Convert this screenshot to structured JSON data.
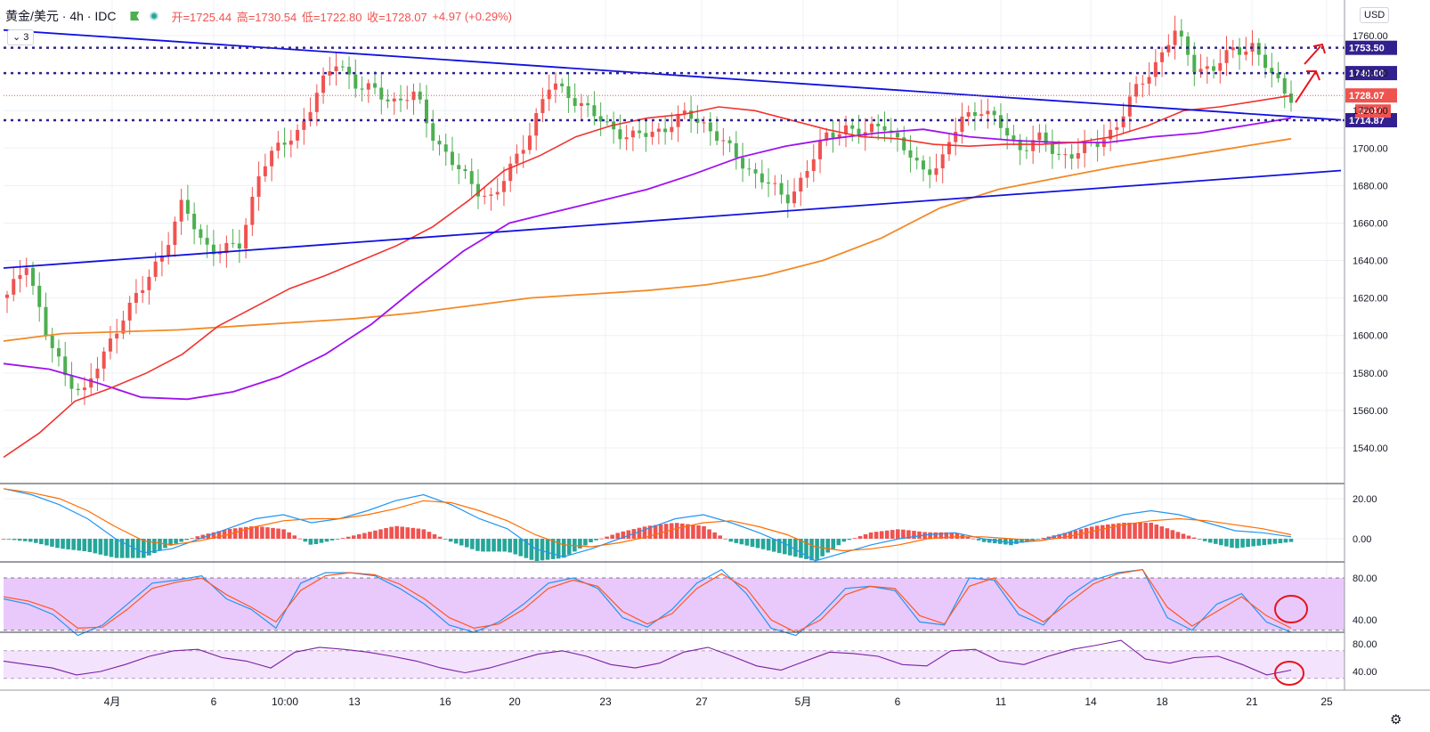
{
  "header": {
    "symbol": "黄金/美元 · 4h · IDC",
    "open": "开=1725.44",
    "high": "高=1730.54",
    "low": "低=1722.80",
    "close": "收=1728.07",
    "change": "+4.97 (+0.29%)",
    "indicator_count": "3",
    "currency": "USD"
  },
  "colors": {
    "up": "#ef5350",
    "down": "#4caf50",
    "trendline": "#1010e0",
    "ma_fast": "#f0322e",
    "ma_mid": "#a012ef",
    "ma_slow": "#f28a26",
    "level": "#33208f"
  },
  "chart_data": [
    {
      "type": "candlestick",
      "x_axis_labels": [
        "4月",
        "6",
        "10:00",
        "13",
        "16",
        "20",
        "23",
        "27",
        "5月",
        "6",
        "11",
        "14",
        "18",
        "21",
        "25"
      ],
      "y_ticks": [
        "1760.00",
        "1740.00",
        "1720.00",
        "1700.00",
        "1680.00",
        "1660.00",
        "1640.00",
        "1620.00",
        "1600.00",
        "1580.00",
        "1560.00",
        "1540.00"
      ],
      "ylim": [
        1528,
        1766
      ],
      "last_price": 1728.07,
      "countdown": "10:47",
      "horizontal_levels": [
        1753.5,
        1740.0,
        1714.87
      ],
      "level_labels": [
        "1753.50",
        "1740.00",
        "1714.87"
      ],
      "trendlines": [
        {
          "name": "resistance",
          "from": [
            0,
            1763
          ],
          "to": [
            430,
            1715
          ]
        },
        {
          "name": "support",
          "from": [
            0,
            1636
          ],
          "to": [
            430,
            1688
          ]
        }
      ],
      "ohlc_path": [
        1620,
        1640,
        1600,
        1578,
        1570,
        1590,
        1612,
        1625,
        1645,
        1670,
        1650,
        1645,
        1648,
        1690,
        1700,
        1710,
        1730,
        1748,
        1732,
        1730,
        1725,
        1728,
        1705,
        1690,
        1680,
        1672,
        1692,
        1712,
        1735,
        1728,
        1718,
        1712,
        1705,
        1708,
        1712,
        1718,
        1712,
        1700,
        1690,
        1682,
        1672,
        1686,
        1705,
        1712,
        1706,
        1715,
        1700,
        1688,
        1692,
        1715,
        1722,
        1712,
        1700,
        1705,
        1696,
        1698,
        1702,
        1712,
        1730,
        1745,
        1762,
        1744,
        1742,
        1752,
        1755,
        1738,
        1728
      ],
      "ma_fast": [
        1535,
        1548,
        1565,
        1572,
        1580,
        1590,
        1605,
        1615,
        1625,
        1632,
        1640,
        1648,
        1658,
        1672,
        1688,
        1696,
        1706,
        1712,
        1716,
        1718,
        1722,
        1720,
        1715,
        1710,
        1706,
        1705,
        1702,
        1701,
        1702,
        1702,
        1703,
        1706,
        1712,
        1720,
        1722,
        1725,
        1728
      ],
      "ma_mid": [
        1585,
        1582,
        1575,
        1567,
        1566,
        1570,
        1578,
        1590,
        1606,
        1626,
        1645,
        1660,
        1666,
        1672,
        1678,
        1686,
        1695,
        1701,
        1705,
        1708,
        1710,
        1706,
        1704,
        1703,
        1703,
        1706,
        1708,
        1712,
        1716
      ],
      "ma_slow": [
        1597,
        1601,
        1602,
        1603,
        1605,
        1607,
        1609,
        1612,
        1616,
        1620,
        1622,
        1624,
        1627,
        1632,
        1640,
        1652,
        1668,
        1678,
        1684,
        1690,
        1695,
        1700,
        1705
      ],
      "annotations": [
        "arrow-up-1",
        "arrow-up-2"
      ]
    },
    {
      "type": "macd",
      "y_ticks": [
        "20.00",
        "0.00"
      ],
      "ylim": [
        -10,
        28
      ],
      "macd": [
        25,
        22,
        17,
        10,
        0,
        -7,
        -5,
        0,
        5,
        10,
        12,
        8,
        10,
        14,
        19,
        22,
        17,
        10,
        5,
        -5,
        -9,
        -5,
        0,
        5,
        10,
        12,
        8,
        3,
        -3,
        -11,
        -7,
        -3,
        0,
        2,
        3,
        0,
        -2,
        -1,
        3,
        8,
        12,
        14,
        12,
        8,
        4,
        3,
        1
      ],
      "signal": [
        25,
        23,
        20,
        14,
        6,
        -1,
        -3,
        -1,
        2,
        6,
        9,
        10,
        10,
        12,
        15,
        19,
        18,
        14,
        9,
        2,
        -3,
        -4,
        -2,
        1,
        5,
        8,
        9,
        6,
        2,
        -4,
        -6,
        -5,
        -3,
        0,
        1,
        1,
        0,
        -1,
        1,
        4,
        7,
        9,
        10,
        9,
        7,
        5,
        2
      ]
    },
    {
      "type": "stochastic",
      "y_ticks": [
        "80.00",
        "40.00"
      ],
      "band": [
        30,
        80
      ],
      "k": [
        60,
        55,
        45,
        25,
        35,
        55,
        75,
        78,
        82,
        60,
        50,
        32,
        75,
        85,
        85,
        82,
        70,
        55,
        35,
        28,
        38,
        55,
        75,
        80,
        70,
        42,
        33,
        50,
        75,
        88,
        65,
        32,
        25,
        45,
        70,
        72,
        68,
        38,
        35,
        80,
        78,
        45,
        35,
        62,
        78,
        85,
        88,
        42,
        30,
        55,
        65,
        38,
        28
      ],
      "d": [
        62,
        58,
        50,
        32,
        33,
        50,
        70,
        76,
        80,
        64,
        52,
        38,
        68,
        82,
        85,
        83,
        74,
        60,
        42,
        32,
        36,
        50,
        70,
        78,
        72,
        48,
        36,
        46,
        70,
        84,
        70,
        40,
        28,
        40,
        64,
        72,
        70,
        44,
        36,
        72,
        80,
        52,
        38,
        56,
        74,
        84,
        88,
        52,
        34,
        48,
        62,
        44,
        32
      ]
    },
    {
      "type": "oscillator",
      "y_ticks": [
        "80.00",
        "40.00"
      ],
      "band": [
        30,
        70
      ],
      "values": [
        55,
        50,
        45,
        35,
        40,
        50,
        62,
        70,
        72,
        60,
        55,
        45,
        68,
        75,
        72,
        68,
        62,
        55,
        45,
        38,
        45,
        55,
        65,
        70,
        62,
        50,
        45,
        52,
        68,
        75,
        62,
        48,
        42,
        55,
        68,
        66,
        62,
        50,
        48,
        70,
        72,
        55,
        50,
        62,
        72,
        78,
        85,
        58,
        52,
        60,
        62,
        50,
        35,
        42
      ]
    }
  ]
}
